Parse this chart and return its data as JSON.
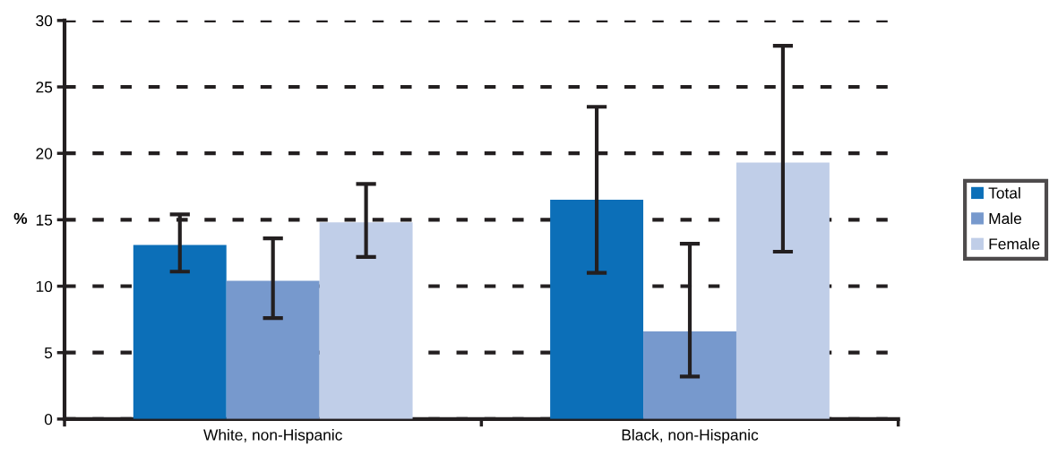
{
  "chart_data": {
    "type": "bar",
    "ylabel": "%",
    "categories": [
      "White, non-Hispanic",
      "Black, non-Hispanic"
    ],
    "series": [
      {
        "name": "Total",
        "color": "#0c6fb8",
        "values": [
          13.1,
          16.5
        ],
        "errors": [
          [
            11.1,
            15.4
          ],
          [
            11.0,
            23.5
          ]
        ]
      },
      {
        "name": "Male",
        "color": "#7799cd",
        "values": [
          10.4,
          6.6
        ],
        "errors": [
          [
            7.6,
            13.6
          ],
          [
            3.2,
            13.2
          ]
        ]
      },
      {
        "name": "Female",
        "color": "#c0cee8",
        "values": [
          14.8,
          19.3
        ],
        "errors": [
          [
            12.2,
            17.7
          ],
          [
            12.6,
            28.1
          ]
        ]
      }
    ],
    "ylim": [
      0,
      30
    ],
    "yticks": [
      0,
      5,
      10,
      15,
      20,
      25,
      30
    ],
    "grid": "y",
    "line_style": "dashed",
    "legend": "right"
  }
}
